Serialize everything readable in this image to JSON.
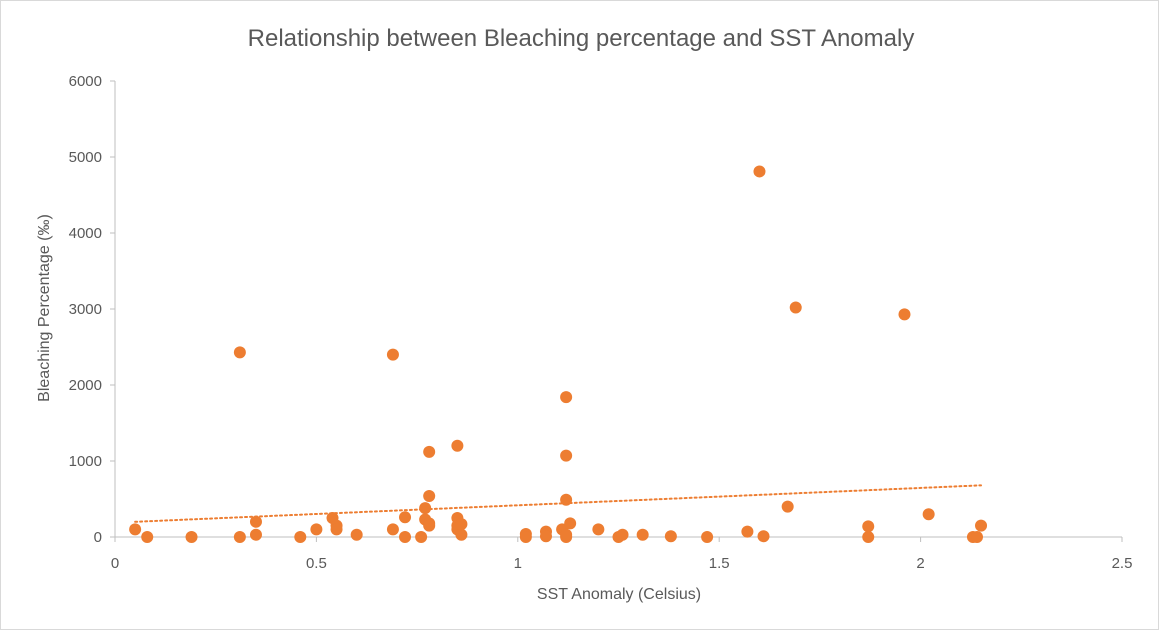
{
  "chart_data": {
    "type": "scatter",
    "title": "Relationship between Bleaching percentage and SST Anomaly",
    "xlabel": "SST Anomaly (Celsius)",
    "ylabel": "Bleaching Percentage (‰)",
    "xlim": [
      0,
      2.5
    ],
    "ylim": [
      0,
      6000
    ],
    "x_ticks": [
      "0",
      "0.5",
      "1",
      "1.5",
      "2",
      "2.5"
    ],
    "y_ticks": [
      "0",
      "1000",
      "2000",
      "3000",
      "4000",
      "5000",
      "6000"
    ],
    "grid": false,
    "legend": "none",
    "colors": {
      "marker": "#ED7D31",
      "trendline": "#ED7D31",
      "axis": "#BFBFBF",
      "text": "#595959"
    },
    "trendline": {
      "type": "linear",
      "style": "dotted",
      "points": [
        [
          0.05,
          200
        ],
        [
          2.15,
          680
        ]
      ]
    },
    "points": [
      [
        0.05,
        100
      ],
      [
        0.08,
        0
      ],
      [
        0.19,
        0
      ],
      [
        0.31,
        0
      ],
      [
        0.31,
        2430
      ],
      [
        0.35,
        30
      ],
      [
        0.35,
        200
      ],
      [
        0.46,
        0
      ],
      [
        0.5,
        100
      ],
      [
        0.54,
        250
      ],
      [
        0.55,
        150
      ],
      [
        0.55,
        100
      ],
      [
        0.6,
        30
      ],
      [
        0.69,
        100
      ],
      [
        0.69,
        2400
      ],
      [
        0.72,
        0
      ],
      [
        0.72,
        260
      ],
      [
        0.76,
        0
      ],
      [
        0.77,
        380
      ],
      [
        0.77,
        230
      ],
      [
        0.78,
        180
      ],
      [
        0.78,
        150
      ],
      [
        0.78,
        1120
      ],
      [
        0.78,
        540
      ],
      [
        0.85,
        250
      ],
      [
        0.85,
        150
      ],
      [
        0.85,
        100
      ],
      [
        0.85,
        1200
      ],
      [
        0.86,
        30
      ],
      [
        0.86,
        170
      ],
      [
        1.02,
        40
      ],
      [
        1.02,
        0
      ],
      [
        1.07,
        70
      ],
      [
        1.07,
        10
      ],
      [
        1.11,
        100
      ],
      [
        1.12,
        0
      ],
      [
        1.12,
        30
      ],
      [
        1.12,
        490
      ],
      [
        1.12,
        1070
      ],
      [
        1.12,
        1840
      ],
      [
        1.13,
        180
      ],
      [
        1.2,
        100
      ],
      [
        1.25,
        0
      ],
      [
        1.26,
        30
      ],
      [
        1.31,
        30
      ],
      [
        1.38,
        10
      ],
      [
        1.47,
        0
      ],
      [
        1.57,
        70
      ],
      [
        1.6,
        4810
      ],
      [
        1.61,
        10
      ],
      [
        1.67,
        400
      ],
      [
        1.69,
        3020
      ],
      [
        1.87,
        140
      ],
      [
        1.87,
        0
      ],
      [
        1.96,
        2930
      ],
      [
        2.02,
        300
      ],
      [
        2.13,
        0
      ],
      [
        2.14,
        0
      ],
      [
        2.15,
        150
      ]
    ]
  }
}
